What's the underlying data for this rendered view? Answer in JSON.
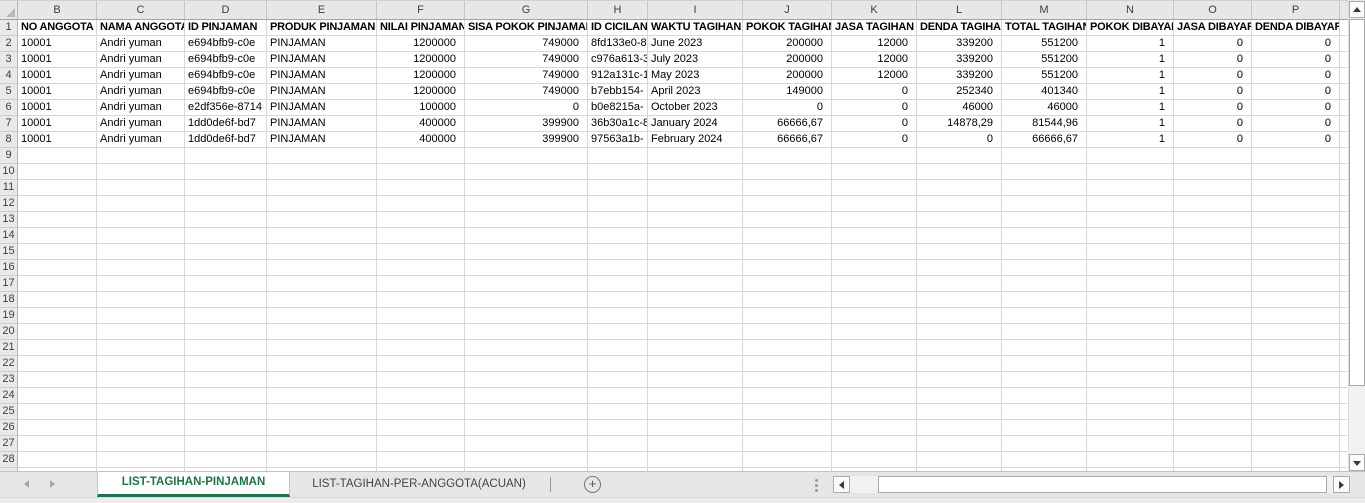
{
  "sheet": {
    "column_letters": [
      "B",
      "C",
      "D",
      "E",
      "F",
      "G",
      "H",
      "I",
      "J",
      "K",
      "L",
      "M",
      "N",
      "O",
      "P"
    ],
    "header_row": [
      "NO ANGGOTA",
      "NAMA ANGGOTA",
      "ID PINJAMAN",
      "PRODUK PINJAMAN",
      "NILAI PINJAMAN",
      "SISA POKOK PINJAMAN",
      "ID CICILAN",
      "WAKTU TAGIHAN",
      "POKOK TAGIHAN",
      "JASA TAGIHAN",
      "DENDA TAGIHAN",
      "TOTAL TAGIHAN",
      "POKOK DIBAYAR",
      "JASA DIBAYAR",
      "DENDA DIBAYAR"
    ],
    "data_rows": [
      [
        "10001",
        "Andri yuman",
        "e694bfb9-c0e",
        "PINJAMAN",
        "1200000",
        "749000",
        "8fd133e0-8",
        "June 2023",
        "200000",
        "12000",
        "339200",
        "551200",
        "1",
        "0",
        "0"
      ],
      [
        "10001",
        "Andri yuman",
        "e694bfb9-c0e",
        "PINJAMAN",
        "1200000",
        "749000",
        "c976a613-3",
        "July 2023",
        "200000",
        "12000",
        "339200",
        "551200",
        "1",
        "0",
        "0"
      ],
      [
        "10001",
        "Andri yuman",
        "e694bfb9-c0e",
        "PINJAMAN",
        "1200000",
        "749000",
        "912a131c-1",
        "May 2023",
        "200000",
        "12000",
        "339200",
        "551200",
        "1",
        "0",
        "0"
      ],
      [
        "10001",
        "Andri yuman",
        "e694bfb9-c0e",
        "PINJAMAN",
        "1200000",
        "749000",
        "b7ebb154-",
        "April 2023",
        "149000",
        "0",
        "252340",
        "401340",
        "1",
        "0",
        "0"
      ],
      [
        "10001",
        "Andri yuman",
        "e2df356e-8714",
        "PINJAMAN",
        "100000",
        "0",
        "b0e8215a-",
        "October 2023",
        "0",
        "0",
        "46000",
        "46000",
        "1",
        "0",
        "0"
      ],
      [
        "10001",
        "Andri yuman",
        "1dd0de6f-bd7",
        "PINJAMAN",
        "400000",
        "399900",
        "36b30a1c-8",
        "January 2024",
        "66666,67",
        "0",
        "14878,29",
        "81544,96",
        "1",
        "0",
        "0"
      ],
      [
        "10001",
        "Andri yuman",
        "1dd0de6f-bd7",
        "PINJAMAN",
        "400000",
        "399900",
        "97563a1b-",
        "February 2024",
        "66666,67",
        "0",
        "0",
        "66666,67",
        "1",
        "0",
        "0"
      ]
    ],
    "numeric_column_indexes": [
      4,
      5,
      8,
      9,
      10,
      11,
      12,
      13,
      14
    ],
    "visible_row_count": 28,
    "first_data_row_number": 2
  },
  "sheet_tabs": {
    "active": "LIST-TAGIHAN-PINJAMAN",
    "inactive": "LIST-TAGIHAN-PER-ANGGOTA(ACUAN)"
  },
  "icons": {
    "select_all": "select-all-triangle",
    "add_sheet": "plus-circle",
    "tab_nav_left": "left-arrow",
    "tab_nav_right": "right-arrow",
    "vscroll_up": "up-arrow",
    "vscroll_down": "down-arrow",
    "hscroll_left": "left-arrow",
    "hscroll_right": "right-arrow",
    "splitter": "vertical-dots"
  },
  "colors": {
    "accent_green": "#217346",
    "header_bg": "#e7e7e7",
    "grid_line": "#d8d8d8",
    "chrome_bg": "#e6e6e6",
    "cell_text": "#000000"
  }
}
